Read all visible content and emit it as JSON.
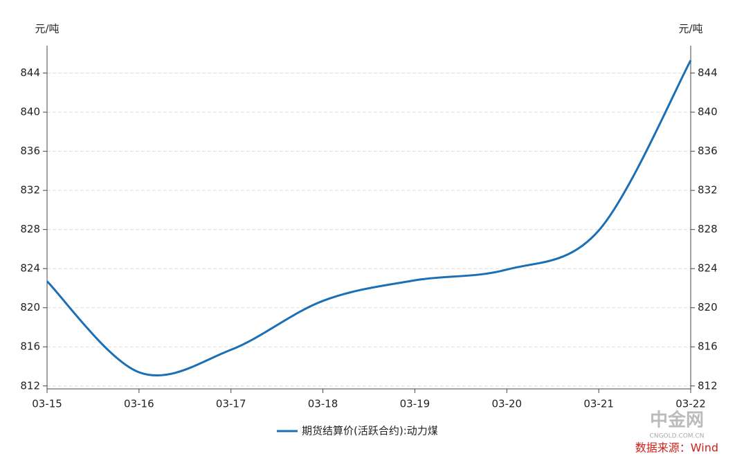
{
  "chart_data": {
    "type": "line",
    "y_label": "元/吨",
    "y2_label": "元/吨",
    "categories": [
      "03-15",
      "03-16",
      "03-17",
      "03-18",
      "03-19",
      "03-20",
      "03-21",
      "03-22"
    ],
    "series": [
      {
        "name": "期货结算价(活跃合约):动力煤",
        "color": "#1a6fb5",
        "values": [
          822.7,
          813.4,
          815.7,
          820.7,
          822.8,
          823.9,
          827.9,
          845.3
        ]
      }
    ],
    "ylim": [
      811.7,
      846.8
    ],
    "yticks": [
      812,
      816,
      820,
      824,
      828,
      832,
      836,
      840,
      844
    ],
    "y2lim": [
      811.7,
      846.8
    ],
    "y2ticks": [
      812,
      816,
      820,
      824,
      828,
      832,
      836,
      840,
      844
    ],
    "grid": true,
    "legend": "bottom",
    "source": "数据来源：Wind",
    "logo": "中金网",
    "logo_url": "CNGOLD.COM.CN"
  }
}
